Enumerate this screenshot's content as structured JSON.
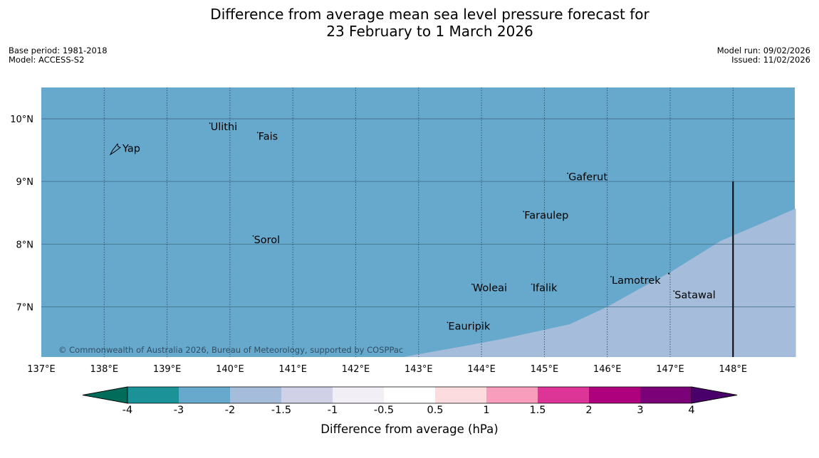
{
  "title": {
    "line1": "Difference from average mean sea level pressure forecast for",
    "line2": "23 February to 1 March 2026"
  },
  "meta_left": {
    "base_period": "Base period: 1981-2018",
    "model": "Model: ACCESS-S2"
  },
  "meta_right": {
    "model_run": "Model run: 09/02/2026",
    "issued": "Issued: 11/02/2026"
  },
  "map": {
    "lon_range": [
      137,
      149
    ],
    "lat_range": [
      6.2,
      10.5
    ],
    "lon_ticks": [
      "137°E",
      "138°E",
      "139°E",
      "140°E",
      "141°E",
      "142°E",
      "143°E",
      "144°E",
      "145°E",
      "146°E",
      "147°E",
      "148°E"
    ],
    "lat_ticks": [
      "10°N",
      "9°N",
      "8°N",
      "7°N"
    ],
    "background_color": "#67a8cd",
    "region_colors": {
      "minus_3_to_minus_2": "#67a8cd",
      "minus_2_to_minus_1_5": "#a6bcdb"
    },
    "boundary_line": {
      "from_lat": 9.0,
      "to_lat": 6.2,
      "lon": 148.0
    },
    "places": [
      {
        "name": "Ulithi",
        "lon": 139.68,
        "lat": 9.93
      },
      {
        "name": "Fais",
        "lon": 140.44,
        "lat": 9.78
      },
      {
        "name": "Yap",
        "lon": 138.2,
        "lat": 9.52
      },
      {
        "name": "Gaferut",
        "lon": 145.37,
        "lat": 9.13
      },
      {
        "name": "Faraulep",
        "lon": 144.67,
        "lat": 8.52
      },
      {
        "name": "Sorol",
        "lon": 140.37,
        "lat": 8.13
      },
      {
        "name": "Lamotrek",
        "lon": 146.06,
        "lat": 7.48
      },
      {
        "name": "Woleai",
        "lon": 143.85,
        "lat": 7.36
      },
      {
        "name": "Ifalik",
        "lon": 144.8,
        "lat": 7.36
      },
      {
        "name": "Satawal",
        "lon": 147.06,
        "lat": 7.25
      },
      {
        "name": "Eauripik",
        "lon": 143.46,
        "lat": 6.75
      }
    ],
    "copyright": "© Commonwealth of Australia 2026, Bureau of Meteorology, supported by COSPPac"
  },
  "colorbar": {
    "title": "Difference from average (hPa)",
    "labels": [
      "-4",
      "-3",
      "-2",
      "-1.5",
      "-1",
      "-0.5",
      "0.5",
      "1",
      "1.5",
      "2",
      "3",
      "4"
    ],
    "colors": [
      "#1a9298",
      "#67a8cd",
      "#a6bcdb",
      "#d0d1e6",
      "#f1eef6",
      "#ffffff",
      "#fddcdf",
      "#f99dbc",
      "#dd3497",
      "#ae017e",
      "#7a0177"
    ],
    "extend_low_color": "#016c59",
    "extend_high_color": "#49006a"
  }
}
